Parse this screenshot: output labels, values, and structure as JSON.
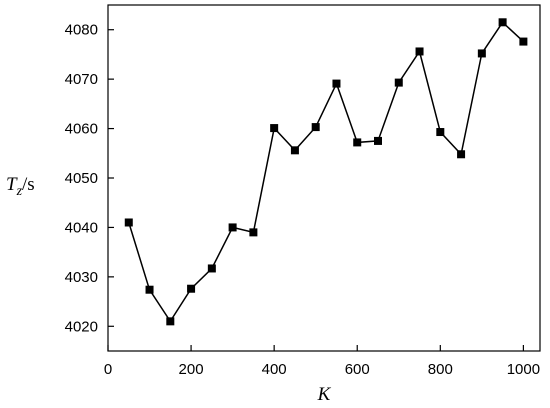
{
  "chart_data": {
    "type": "line",
    "title": "",
    "xlabel": "K",
    "ylabel": {
      "symbol": "T",
      "subscript": "z",
      "unit": "/s"
    },
    "xlim": [
      0,
      1040
    ],
    "ylim": [
      4015,
      4085
    ],
    "xticks": [
      0,
      200,
      400,
      600,
      800,
      1000
    ],
    "yticks": [
      4020,
      4030,
      4040,
      4050,
      4060,
      4070,
      4080
    ],
    "grid": false,
    "marker": "square",
    "series": [
      {
        "x": [
          50,
          100,
          150,
          200,
          250,
          300,
          350,
          400,
          450,
          500,
          550,
          600,
          650,
          700,
          750,
          800,
          850,
          900,
          950,
          1000
        ],
        "y": [
          4041.0,
          4027.4,
          4021.0,
          4027.6,
          4031.7,
          4040.0,
          4039.0,
          4060.1,
          4055.6,
          4060.3,
          4069.1,
          4057.2,
          4057.5,
          4069.3,
          4075.6,
          4059.3,
          4054.8,
          4075.2,
          4081.5,
          4077.6
        ]
      }
    ]
  }
}
